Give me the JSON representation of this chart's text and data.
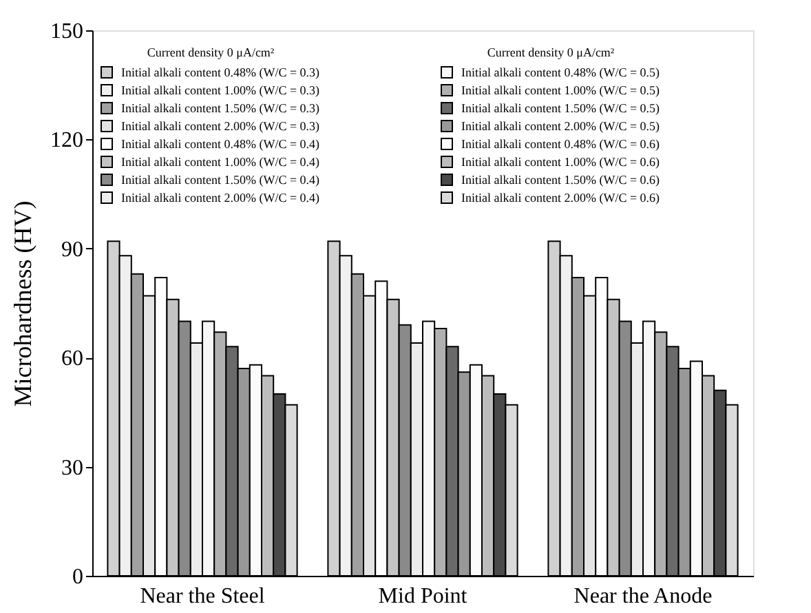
{
  "chart_data": {
    "type": "bar",
    "categories": [
      "Near the Steel",
      "Mid Point",
      "Near the Anode"
    ],
    "ylabel": "Microhardness (HV)",
    "legend_title": "Current density 0 μA/cm²",
    "ylim": [
      0,
      150
    ],
    "yticks": [
      0,
      30,
      60,
      90,
      120,
      150
    ],
    "grid": false,
    "legend": "top",
    "series": [
      {
        "name": "Initial alkali content 0.48% (W/C = 0.3)",
        "color": "#d0d0d0",
        "values": [
          92,
          92,
          92
        ]
      },
      {
        "name": "Initial alkali content 1.00% (W/C = 0.3)",
        "color": "#f0f0f0",
        "values": [
          88,
          88,
          88
        ]
      },
      {
        "name": "Initial alkali content 1.50% (W/C = 0.3)",
        "color": "#a0a0a0",
        "values": [
          83,
          83,
          82
        ]
      },
      {
        "name": "Initial alkali content 2.00% (W/C = 0.3)",
        "color": "#e4e4e4",
        "values": [
          77,
          77,
          77
        ]
      },
      {
        "name": "Initial alkali content 0.48% (W/C = 0.4)",
        "color": "#ffffff",
        "values": [
          82,
          81,
          82
        ]
      },
      {
        "name": "Initial alkali content 1.00% (W/C = 0.4)",
        "color": "#c4c4c4",
        "values": [
          76,
          76,
          76
        ]
      },
      {
        "name": "Initial alkali content 1.50% (W/C = 0.4)",
        "color": "#8a8a8a",
        "values": [
          70,
          69,
          70
        ]
      },
      {
        "name": "Initial alkali content 2.00% (W/C = 0.4)",
        "color": "#ececec",
        "values": [
          64,
          64,
          64
        ]
      },
      {
        "name": "Initial alkali content 0.48% (W/C = 0.5)",
        "color": "#f7f7f7",
        "values": [
          70,
          70,
          70
        ]
      },
      {
        "name": "Initial alkali content 1.00% (W/C = 0.5)",
        "color": "#b0b0b0",
        "values": [
          67,
          68,
          67
        ]
      },
      {
        "name": "Initial alkali content 1.50% (W/C = 0.5)",
        "color": "#6a6a6a",
        "values": [
          63,
          63,
          63
        ]
      },
      {
        "name": "Initial alkali content 2.00% (W/C = 0.5)",
        "color": "#989898",
        "values": [
          57,
          56,
          57
        ]
      },
      {
        "name": "Initial alkali content 0.48% (W/C = 0.6)",
        "color": "#fbfbfb",
        "values": [
          58,
          58,
          59
        ]
      },
      {
        "name": "Initial alkali content 1.00% (W/C = 0.6)",
        "color": "#bcbcbc",
        "values": [
          55,
          55,
          55
        ]
      },
      {
        "name": "Initial alkali content 1.50% (W/C = 0.6)",
        "color": "#4a4a4a",
        "values": [
          50,
          50,
          51
        ]
      },
      {
        "name": "Initial alkali content 2.00% (W/C = 0.6)",
        "color": "#dadada",
        "values": [
          47,
          47,
          47
        ]
      }
    ]
  }
}
